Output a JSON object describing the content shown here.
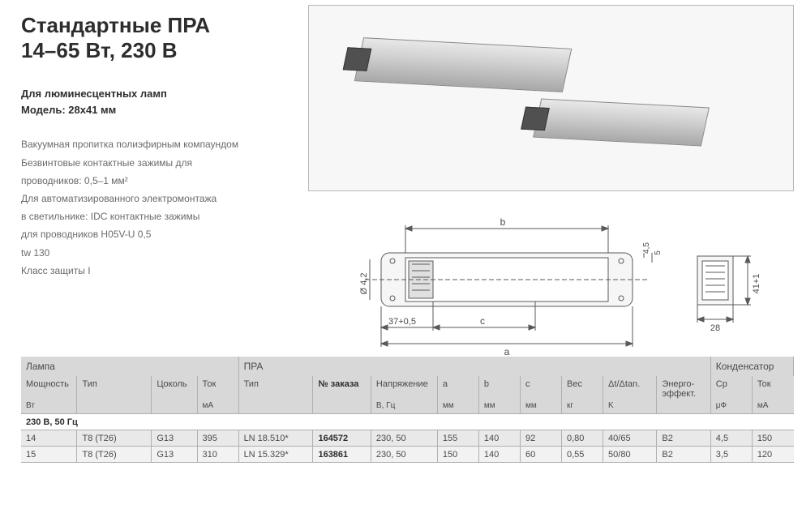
{
  "header": {
    "title_line1": "Стандартные ПРА",
    "title_line2": "14–65 Вт, 230 В",
    "subtitle1": "Для люминесцентных ламп",
    "subtitle2": "Модель: 28x41 мм"
  },
  "description": {
    "lines": [
      "Вакуумная пропитка полиэфирным компаундом",
      "Безвинтовые контактные зажимы для",
      "проводников: 0,5–1 мм²",
      "Для автоматизированного электромонтажа",
      "в светильнике: IDC контактные зажимы",
      "для проводников H05V-U 0,5",
      "tw 130",
      "Класс защиты I"
    ]
  },
  "diagram": {
    "labels": {
      "a": "a",
      "b": "b",
      "c": "c",
      "dia": "Ø 4,2",
      "d37": "37+0,5",
      "h45": "4,5",
      "h5": "5",
      "w28": "28",
      "h41": "41+1"
    },
    "colors": {
      "stroke": "#5a5a5a",
      "fill": "#f6f6f6",
      "text": "#4a4a4a"
    }
  },
  "table": {
    "group_headers": [
      "Лампа",
      "ПРА",
      "Конденсатор"
    ],
    "group_spans": [
      4,
      9,
      2
    ],
    "sub": [
      {
        "label": "Мощность",
        "unit": "Вт"
      },
      {
        "label": "Тип",
        "unit": ""
      },
      {
        "label": "Цоколь",
        "unit": ""
      },
      {
        "label": "Ток",
        "unit": "мА"
      },
      {
        "label": "Тип",
        "unit": ""
      },
      {
        "label": "№ заказа",
        "unit": "",
        "bold": true
      },
      {
        "label": "Напряжение",
        "unit": "В, Гц"
      },
      {
        "label": "a",
        "unit": "мм"
      },
      {
        "label": "b",
        "unit": "мм"
      },
      {
        "label": "c",
        "unit": "мм"
      },
      {
        "label": "Вес",
        "unit": "кг"
      },
      {
        "label": "Δt/Δtan.",
        "unit": "K"
      },
      {
        "label": "Энерго-\nэффект.",
        "unit": ""
      },
      {
        "label": "Cp",
        "unit": "μФ"
      },
      {
        "label": "Ток",
        "unit": "мА"
      }
    ],
    "section_label": "230 В, 50 Гц",
    "rows": [
      [
        "14",
        "T8 (T26)",
        "G13",
        "395",
        "LN 18.510*",
        "164572",
        "230, 50",
        "155",
        "140",
        "92",
        "0,80",
        "40/65",
        "B2",
        "4,5",
        "150"
      ],
      [
        "15",
        "T8 (T26)",
        "G13",
        "310",
        "LN 15.329*",
        "163861",
        "230, 50",
        "150",
        "140",
        "60",
        "0,55",
        "50/80",
        "B2",
        "3,5",
        "120"
      ]
    ],
    "bold_col_index": 5,
    "col_widths_pct": [
      5.2,
      9,
      5.5,
      5,
      9,
      7,
      7.5,
      5,
      5,
      5,
      5,
      6.5,
      6.5,
      5,
      5
    ],
    "colors": {
      "header_bg": "#d8d8d8",
      "row_bg": "#e9e9e9",
      "row_alt_bg": "#f2f2f2",
      "border": "#b0b0b0",
      "text": "#4a4a4a",
      "bold_text": "#2d2d2d"
    }
  }
}
